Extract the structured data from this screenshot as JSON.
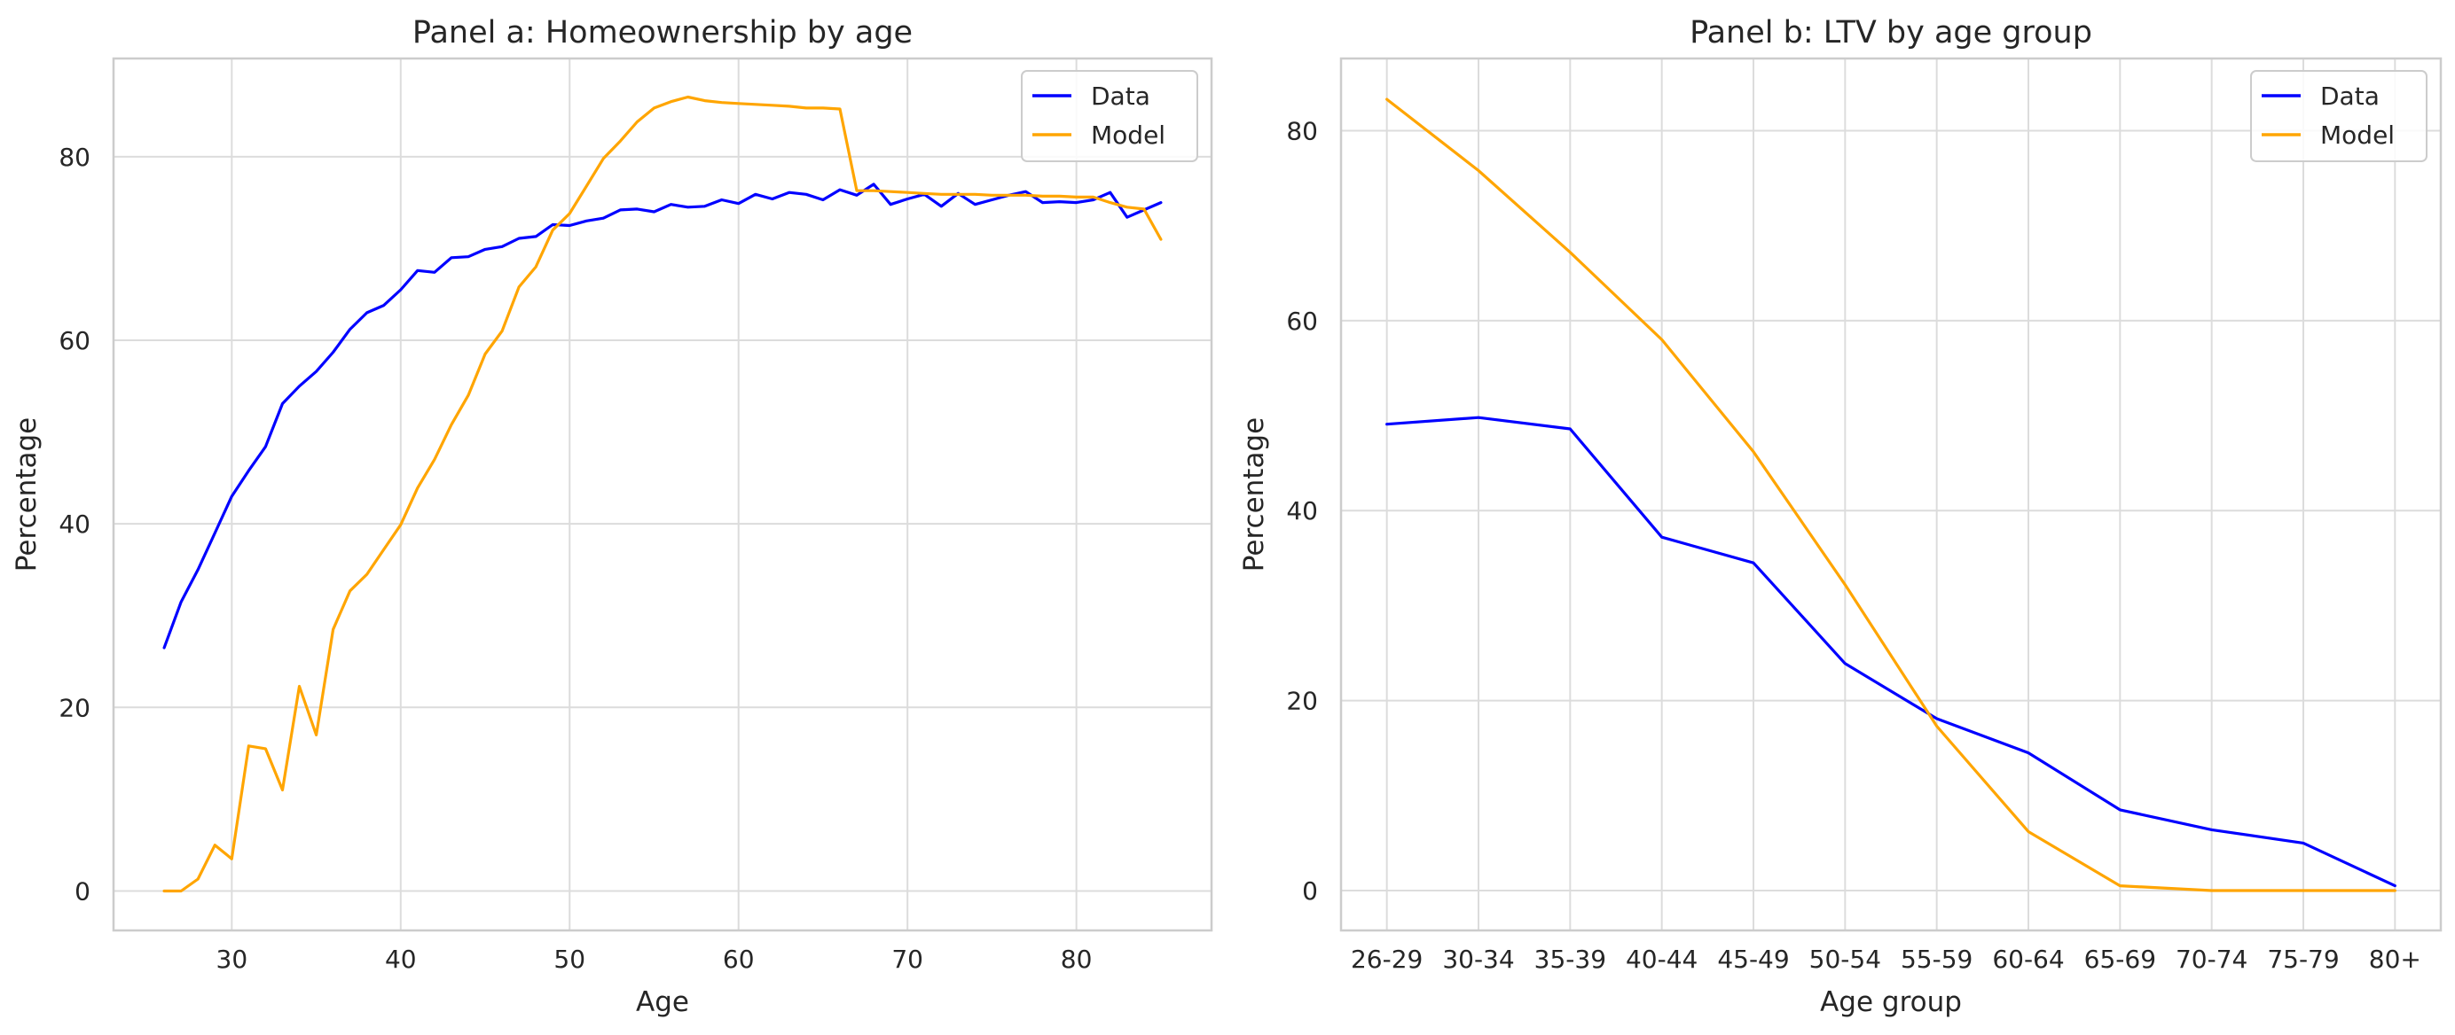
{
  "colors": {
    "data": "#0000ff",
    "model": "#ffa500",
    "grid": "#dcdcdc",
    "axes_frame": "#cccccc",
    "text": "#262626",
    "background": "#ffffff"
  },
  "chart_data": [
    {
      "type": "line",
      "title": "Panel a: Homeownership by age",
      "xlabel": "Age",
      "ylabel": "Percentage",
      "xlim": [
        23,
        88
      ],
      "ylim": [
        -4.3,
        90.7
      ],
      "xticks": [
        30,
        40,
        50,
        60,
        70,
        80
      ],
      "yticks": [
        0,
        20,
        40,
        60,
        80
      ],
      "grid": true,
      "legend": "top-right",
      "x": [
        26,
        27,
        28,
        29,
        30,
        31,
        32,
        33,
        34,
        35,
        36,
        37,
        38,
        39,
        40,
        41,
        42,
        43,
        44,
        45,
        46,
        47,
        48,
        49,
        50,
        51,
        52,
        53,
        54,
        55,
        56,
        57,
        58,
        59,
        60,
        61,
        62,
        63,
        64,
        65,
        66,
        67,
        68,
        69,
        70,
        71,
        72,
        73,
        74,
        75,
        76,
        77,
        78,
        79,
        80,
        81,
        82,
        83,
        84,
        85
      ],
      "series": [
        {
          "name": "Data",
          "color": "#0000ff",
          "values": [
            26.5,
            31.5,
            35.0,
            39.0,
            43.0,
            45.8,
            48.4,
            53.1,
            55.0,
            56.6,
            58.7,
            61.2,
            63.0,
            63.8,
            65.5,
            67.6,
            67.4,
            69.0,
            69.1,
            69.9,
            70.2,
            71.1,
            71.3,
            72.6,
            72.5,
            73.0,
            73.3,
            74.2,
            74.3,
            74.0,
            74.8,
            74.5,
            74.6,
            75.3,
            74.9,
            75.9,
            75.4,
            76.1,
            75.9,
            75.3,
            76.4,
            75.8,
            77.0,
            74.8,
            75.4,
            75.9,
            74.6,
            76.0,
            74.8,
            75.3,
            75.8,
            76.2,
            75.0,
            75.1,
            75.0,
            75.3,
            76.1,
            73.4,
            74.2,
            75.0
          ]
        },
        {
          "name": "Model",
          "color": "#ffa500",
          "values": [
            0.0,
            0.0,
            1.3,
            5.0,
            3.5,
            15.8,
            15.5,
            11.0,
            22.3,
            17.0,
            28.5,
            32.7,
            34.5,
            37.2,
            39.9,
            43.9,
            47.0,
            50.8,
            54.0,
            58.5,
            61.0,
            65.8,
            68.0,
            72.0,
            73.8,
            76.8,
            79.8,
            81.7,
            83.8,
            85.3,
            86.0,
            86.5,
            86.1,
            85.9,
            85.8,
            85.7,
            85.6,
            85.5,
            85.3,
            85.3,
            85.2,
            76.3,
            76.3,
            76.2,
            76.1,
            76.0,
            75.9,
            75.9,
            75.9,
            75.8,
            75.8,
            75.8,
            75.7,
            75.7,
            75.6,
            75.6,
            75.0,
            74.5,
            74.3,
            71.0
          ]
        }
      ]
    },
    {
      "type": "line",
      "title": "Panel b: LTV by age group",
      "xlabel": "Age group",
      "ylabel": "Percentage",
      "ylim": [
        -4.2,
        87.6
      ],
      "yticks": [
        0,
        20,
        40,
        60,
        80
      ],
      "grid": true,
      "legend": "top-right",
      "categories": [
        "26-29",
        "30-34",
        "35-39",
        "40-44",
        "45-49",
        "50-54",
        "55-59",
        "60-64",
        "65-69",
        "70-74",
        "75-79",
        "80+"
      ],
      "series": [
        {
          "name": "Data",
          "color": "#0000ff",
          "values": [
            49.1,
            49.8,
            48.6,
            37.2,
            34.5,
            23.9,
            18.1,
            14.5,
            8.5,
            6.4,
            5.0,
            0.5
          ]
        },
        {
          "name": "Model",
          "color": "#ffa500",
          "values": [
            83.3,
            75.8,
            67.2,
            58.0,
            46.2,
            32.2,
            17.3,
            6.2,
            0.5,
            0.0,
            0.0,
            0.0
          ]
        }
      ]
    }
  ]
}
